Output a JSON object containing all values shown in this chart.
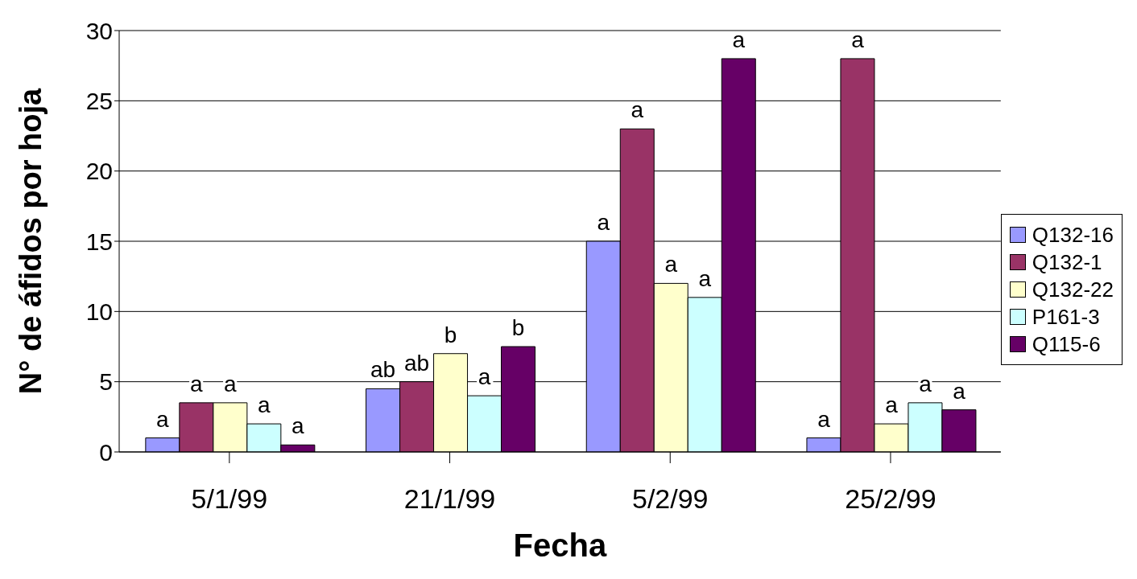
{
  "chart_data": {
    "type": "bar",
    "xlabel": "Fecha",
    "ylabel": "N° de áfidos por hoja",
    "categories": [
      "5/1/99",
      "21/1/99",
      "5/2/99",
      "25/2/99"
    ],
    "series": [
      {
        "name": "Q132-16",
        "color": "#9999ff",
        "values": [
          1,
          4.5,
          15,
          1
        ],
        "value_labels": [
          "a",
          "ab",
          "a",
          "a"
        ]
      },
      {
        "name": "Q132-1",
        "color": "#993366",
        "values": [
          3.5,
          5,
          23,
          28
        ],
        "value_labels": [
          "a",
          "ab",
          "a",
          "a"
        ]
      },
      {
        "name": "Q132-22",
        "color": "#ffffcc",
        "values": [
          3.5,
          7,
          12,
          2
        ],
        "value_labels": [
          "a",
          "b",
          "a",
          "a"
        ]
      },
      {
        "name": "P161-3",
        "color": "#ccffff",
        "values": [
          2,
          4,
          11,
          3.5
        ],
        "value_labels": [
          "a",
          "a",
          "a",
          "a"
        ]
      },
      {
        "name": "Q115-6",
        "color": "#660066",
        "values": [
          0.5,
          7.5,
          28,
          3
        ],
        "value_labels": [
          "a",
          "b",
          "a",
          "a"
        ]
      }
    ],
    "ylim": [
      0,
      30
    ],
    "yticks": [
      0,
      5,
      10,
      15,
      20,
      25,
      30
    ],
    "grid": "y",
    "legend": "right"
  }
}
